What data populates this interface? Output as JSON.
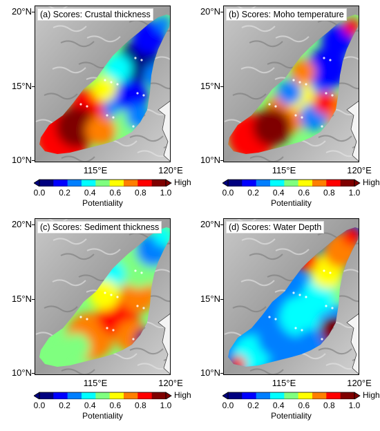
{
  "panels": [
    {
      "title": "(a) Scores: Crustal thickness",
      "lat_labels": [
        "20°N",
        "15°N",
        "10°N"
      ],
      "lon_labels": [
        "115°E",
        "120°E"
      ],
      "variable": "crustal"
    },
    {
      "title": "(b) Scores: Moho temperature",
      "lat_labels": [
        "20°N",
        "15°N",
        "10°N"
      ],
      "lon_labels": [
        "115°E",
        "120°E"
      ],
      "variable": "moho"
    },
    {
      "title": "(c) Scores: Sediment thickness",
      "lat_labels": [
        "20°N",
        "15°N",
        "10°N"
      ],
      "lon_labels": [
        "115°E",
        "120°E"
      ],
      "variable": "sediment"
    },
    {
      "title": "(d) Scores: Water Depth",
      "lat_labels": [
        "20°N",
        "15°N",
        "10°N"
      ],
      "lon_labels": [
        "115°E",
        "120°E"
      ],
      "variable": "water"
    }
  ],
  "colorbar": {
    "ticks": [
      "0.0",
      "0.2",
      "0.4",
      "0.6",
      "0.8",
      "1.0"
    ],
    "high_label": "High",
    "title": "Potentiality",
    "colors": [
      "#00007f",
      "#0000ff",
      "#007fff",
      "#00ffff",
      "#7fff7f",
      "#ffff00",
      "#ff7f00",
      "#ff0000",
      "#7f0000"
    ]
  }
}
